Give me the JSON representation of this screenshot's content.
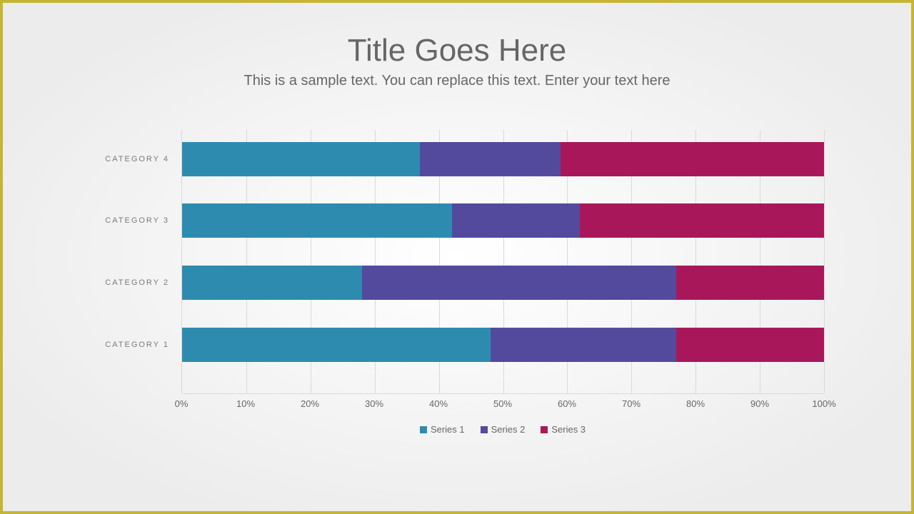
{
  "frame": {
    "border_color": "#c5b536"
  },
  "title": {
    "text": "Title Goes Here",
    "color": "#666666",
    "fontsize": 44
  },
  "subtitle": {
    "text": "This is a sample text. You can replace this text. Enter your text here",
    "color": "#666666",
    "fontsize": 20
  },
  "chart": {
    "type": "stacked-bar-horizontal-100pct",
    "grid_color": "#d9d9d9",
    "axis_label_color": "#666666",
    "category_label_color": "#7a7a7a",
    "row_height_pct": 13,
    "row_gap_pct": 10.5,
    "top_pad_pct": 4.5,
    "categories": [
      {
        "label": "CATEGORY 4",
        "values": [
          37,
          22,
          41
        ]
      },
      {
        "label": "CATEGORY 3",
        "values": [
          42,
          20,
          38
        ]
      },
      {
        "label": "CATEGORY 2",
        "values": [
          28,
          49,
          23
        ]
      },
      {
        "label": "CATEGORY 1",
        "values": [
          48,
          29,
          23
        ]
      }
    ],
    "series": [
      {
        "name": "Series 1",
        "color": "#2e8bb0"
      },
      {
        "name": "Series 2",
        "color": "#534a9e"
      },
      {
        "name": "Series 3",
        "color": "#a9175b"
      }
    ],
    "xticks": [
      0,
      10,
      20,
      30,
      40,
      50,
      60,
      70,
      80,
      90,
      100
    ],
    "xtick_suffix": "%"
  }
}
